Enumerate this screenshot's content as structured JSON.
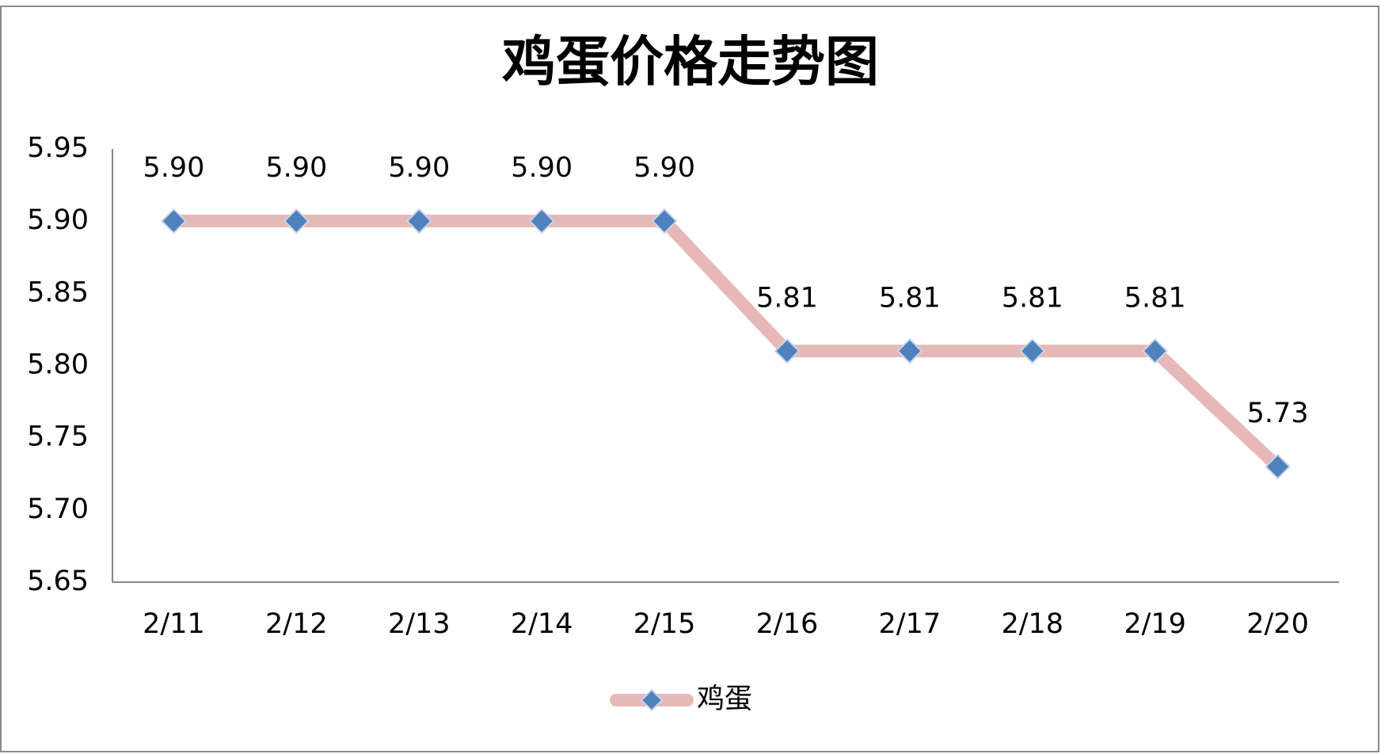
{
  "chart_data": {
    "type": "line",
    "title": "鸡蛋价格走势图",
    "categories": [
      "2/11",
      "2/12",
      "2/13",
      "2/14",
      "2/15",
      "2/16",
      "2/17",
      "2/18",
      "2/19",
      "2/20"
    ],
    "series": [
      {
        "name": "鸡蛋",
        "color": "#e6b9b8",
        "marker_color": "#4f81bd",
        "values": [
          5.9,
          5.9,
          5.9,
          5.9,
          5.9,
          5.81,
          5.81,
          5.81,
          5.81,
          5.73
        ],
        "value_labels": [
          "5.90",
          "5.90",
          "5.90",
          "5.90",
          "5.90",
          "5.81",
          "5.81",
          "5.81",
          "5.81",
          "5.73"
        ]
      }
    ],
    "ylim": [
      5.65,
      5.95
    ],
    "yticks": [
      5.65,
      {
        "value": 5.7,
        "label": "5.70"
      },
      5.75,
      {
        "value": 5.8,
        "label": "5.80"
      },
      5.85,
      {
        "value": 5.9,
        "label": "5.90"
      },
      5.95
    ],
    "grid": false,
    "legend": "bottom"
  }
}
